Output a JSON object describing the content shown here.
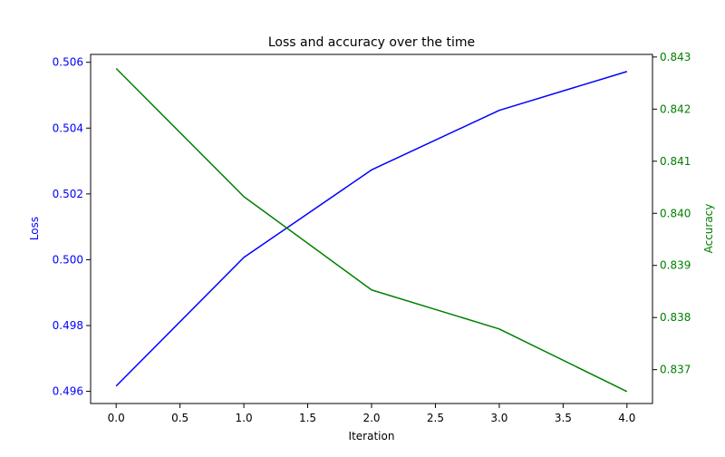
{
  "chart_data": {
    "type": "line",
    "title": "Loss and accuracy over the time",
    "xlabel": "Iteration",
    "ylabel_left": "Loss",
    "ylabel_right": "Accuracy",
    "x": [
      0,
      1,
      2,
      3,
      4
    ],
    "xlim": [
      -0.2,
      4.2
    ],
    "xticks": [
      "0.0",
      "0.5",
      "1.0",
      "1.5",
      "2.0",
      "2.5",
      "3.0",
      "3.5",
      "4.0"
    ],
    "left_axis": {
      "ylim": [
        0.49563,
        0.50624
      ],
      "ticks": [
        "0.496",
        "0.498",
        "0.500",
        "0.502",
        "0.504",
        "0.506"
      ],
      "color": "#0000ff"
    },
    "right_axis": {
      "ylim": [
        0.83635,
        0.84305
      ],
      "ticks": [
        "0.837",
        "0.838",
        "0.839",
        "0.840",
        "0.841",
        "0.842",
        "0.843"
      ],
      "color": "#008000"
    },
    "series": [
      {
        "axis": "left",
        "color": "#0000ff",
        "values": [
          0.49616,
          0.50007,
          0.50273,
          0.50454,
          0.50572
        ]
      },
      {
        "axis": "right",
        "color": "#008000",
        "values": [
          0.84278,
          0.84032,
          0.83853,
          0.83778,
          0.83658
        ]
      }
    ],
    "grid": false,
    "legend": "none"
  }
}
